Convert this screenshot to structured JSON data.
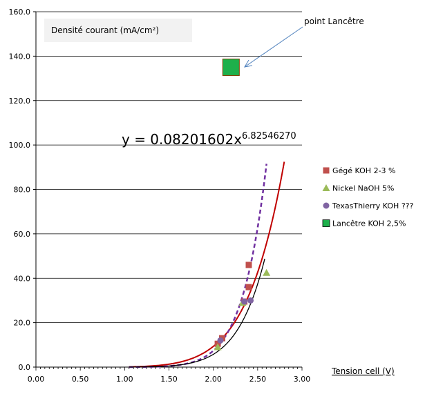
{
  "chart_data": {
    "type": "scatter",
    "title": "",
    "ylabel_box": "Densité courant (mA/cm²)",
    "xlabel": "Tension cell (V)",
    "xlim": [
      0,
      3
    ],
    "ylim": [
      0,
      160
    ],
    "x_ticks": [
      "0.00",
      "0.50",
      "1.00",
      "1.50",
      "2.00",
      "2.50",
      "3.00"
    ],
    "y_ticks": [
      "0.0",
      "20.0",
      "40.0",
      "60.0",
      "80.0",
      "100.0",
      "120.0",
      "140.0",
      "160.0"
    ],
    "grid": "horizontal",
    "legend_position": "right",
    "series": [
      {
        "name": "Gégé KOH 2-3 %",
        "marker": "square",
        "color": "#C0504D",
        "points": [
          [
            2.05,
            10.5
          ],
          [
            2.1,
            13.0
          ],
          [
            2.35,
            29.5
          ],
          [
            2.4,
            36.0
          ],
          [
            2.4,
            46.0
          ]
        ]
      },
      {
        "name": "Nickel NaOH 5%",
        "marker": "triangle",
        "color": "#9BBB59",
        "points": [
          [
            2.05,
            9.0
          ],
          [
            2.33,
            29.0
          ],
          [
            2.6,
            42.5
          ]
        ]
      },
      {
        "name": "TexasThierry KOH ???",
        "marker": "circle",
        "color": "#8064A2",
        "points": [
          [
            2.08,
            12.0
          ],
          [
            2.35,
            29.5
          ],
          [
            2.42,
            30.0
          ]
        ]
      },
      {
        "name": "Lancêtre KOH 2,5%",
        "marker": "square-large",
        "color": "#1DB04B",
        "points": [
          [
            2.2,
            135.0
          ]
        ]
      }
    ],
    "trendlines": [
      {
        "kind": "power",
        "a": 0.08201602,
        "b": 6.8254627,
        "color": "#C00000",
        "style": "solid",
        "x_range": [
          1.05,
          2.8
        ]
      },
      {
        "kind": "power",
        "a": 0.0095,
        "b": 9.6,
        "color": "#7030A0",
        "style": "dashed",
        "x_range": [
          1.05,
          2.6
        ]
      },
      {
        "kind": "power",
        "a": 0.017,
        "b": 8.4,
        "color": "#000000",
        "style": "solid-thin",
        "x_range": [
          1.05,
          2.58
        ]
      }
    ],
    "equation": {
      "base": "y = 0.08201602x",
      "exponent": "6.82546270"
    },
    "annotation": "point Lancêtre"
  }
}
